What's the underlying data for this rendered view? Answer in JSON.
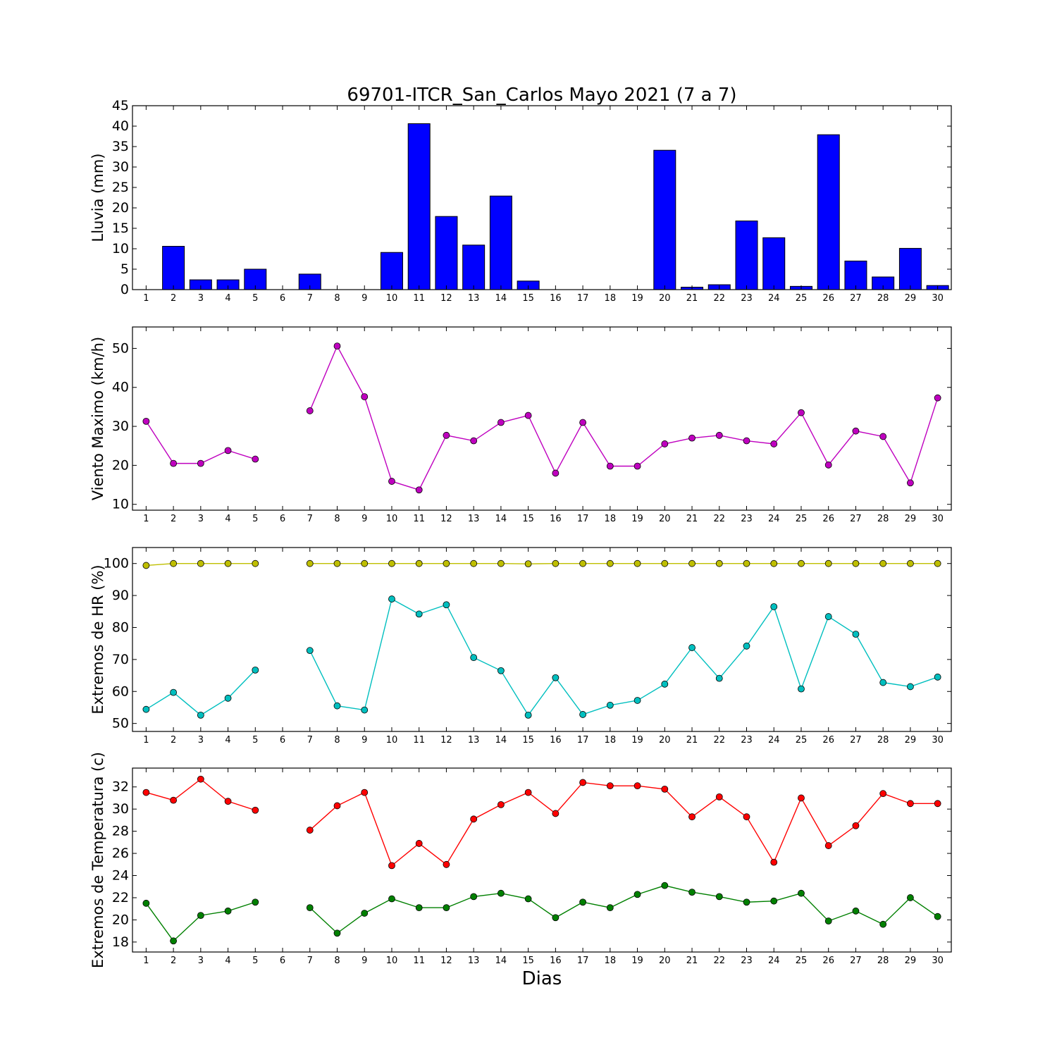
{
  "chart_data": [
    {
      "type": "bar",
      "title": "69701-ITCR_San_Carlos Mayo 2021  (7 a 7)",
      "ylabel": "Lluvia (mm)",
      "xlabel": "",
      "categories": [
        "1",
        "2",
        "3",
        "4",
        "5",
        "6",
        "7",
        "8",
        "9",
        "10",
        "11",
        "12",
        "13",
        "14",
        "15",
        "16",
        "17",
        "18",
        "19",
        "20",
        "21",
        "22",
        "23",
        "24",
        "25",
        "26",
        "27",
        "28",
        "29",
        "30"
      ],
      "values": [
        0.0,
        10.6,
        2.4,
        2.4,
        5.0,
        null,
        3.8,
        0.0,
        0.0,
        9.1,
        40.6,
        17.9,
        10.9,
        22.9,
        2.1,
        0.0,
        0.0,
        0.0,
        0.0,
        34.1,
        0.6,
        1.2,
        16.8,
        12.7,
        0.8,
        37.9,
        7.0,
        3.1,
        10.1,
        1.0
      ],
      "ylim": [
        0,
        45
      ],
      "yticks": [
        0,
        5,
        10,
        15,
        20,
        25,
        30,
        35,
        40,
        45
      ],
      "bar_color": "#0000ff",
      "grid": false
    },
    {
      "type": "line",
      "ylabel": "Viento Maximo (km/h)",
      "xlabel": "",
      "x": [
        1,
        2,
        3,
        4,
        5,
        6,
        7,
        8,
        9,
        10,
        11,
        12,
        13,
        14,
        15,
        16,
        17,
        18,
        19,
        20,
        21,
        22,
        23,
        24,
        25,
        26,
        27,
        28,
        29,
        30
      ],
      "series": [
        {
          "color": "#bf00bf",
          "values": [
            31.3,
            20.5,
            20.5,
            23.8,
            21.6,
            null,
            34.0,
            50.6,
            37.6,
            15.9,
            13.7,
            27.7,
            26.3,
            31.0,
            32.8,
            18.0,
            31.0,
            19.8,
            19.8,
            25.5,
            27.0,
            27.7,
            26.3,
            25.5,
            33.5,
            20.1,
            28.8,
            27.4,
            15.5,
            37.3
          ]
        }
      ],
      "ylim": [
        8.5,
        55.5
      ],
      "yticks": [
        10,
        20,
        30,
        40,
        50
      ],
      "grid": false
    },
    {
      "type": "line",
      "ylabel": "Extremos de HR (%)",
      "xlabel": "",
      "x": [
        1,
        2,
        3,
        4,
        5,
        6,
        7,
        8,
        9,
        10,
        11,
        12,
        13,
        14,
        15,
        16,
        17,
        18,
        19,
        20,
        21,
        22,
        23,
        24,
        25,
        26,
        27,
        28,
        29,
        30
      ],
      "series": [
        {
          "color": "#bfbf00",
          "values": [
            99.4,
            100,
            100,
            100,
            100,
            null,
            100,
            100,
            100,
            100,
            100,
            100,
            100,
            100,
            99.9,
            100,
            100,
            100,
            100,
            100,
            100,
            100,
            100,
            100,
            100,
            100,
            100,
            100,
            100,
            100
          ]
        },
        {
          "color": "#00bfbf",
          "values": [
            54.4,
            59.7,
            52.6,
            57.9,
            66.7,
            null,
            72.8,
            55.5,
            54.2,
            88.9,
            84.2,
            87.1,
            70.6,
            66.5,
            52.6,
            64.3,
            52.8,
            55.7,
            57.2,
            62.3,
            73.7,
            64.1,
            74.2,
            86.5,
            60.8,
            83.4,
            77.9,
            62.8,
            61.5,
            64.5
          ]
        }
      ],
      "ylim": [
        47.5,
        105
      ],
      "yticks": [
        50,
        60,
        70,
        80,
        90,
        100
      ],
      "grid": false
    },
    {
      "type": "line",
      "ylabel": "Extremos de Temperatura (c)",
      "xlabel": "Dias",
      "x": [
        1,
        2,
        3,
        4,
        5,
        6,
        7,
        8,
        9,
        10,
        11,
        12,
        13,
        14,
        15,
        16,
        17,
        18,
        19,
        20,
        21,
        22,
        23,
        24,
        25,
        26,
        27,
        28,
        29,
        30
      ],
      "series": [
        {
          "color": "#ff0000",
          "values": [
            31.5,
            30.8,
            32.7,
            30.7,
            29.9,
            null,
            28.1,
            30.3,
            31.5,
            24.9,
            26.9,
            25.0,
            29.1,
            30.4,
            31.5,
            29.6,
            32.4,
            32.1,
            32.1,
            31.8,
            29.3,
            31.1,
            29.3,
            25.2,
            31.0,
            26.7,
            28.5,
            31.4,
            30.5,
            30.5
          ]
        },
        {
          "color": "#008000",
          "values": [
            21.5,
            18.1,
            20.4,
            20.8,
            21.6,
            null,
            21.1,
            18.8,
            20.6,
            21.9,
            21.1,
            21.1,
            22.1,
            22.4,
            21.9,
            20.2,
            21.6,
            21.1,
            22.3,
            23.1,
            22.5,
            22.1,
            21.6,
            21.7,
            22.4,
            19.9,
            20.8,
            19.6,
            22.0,
            20.3
          ]
        }
      ],
      "ylim": [
        17.1,
        33.7
      ],
      "yticks": [
        18,
        20,
        22,
        24,
        26,
        28,
        30,
        32
      ],
      "grid": false
    }
  ]
}
